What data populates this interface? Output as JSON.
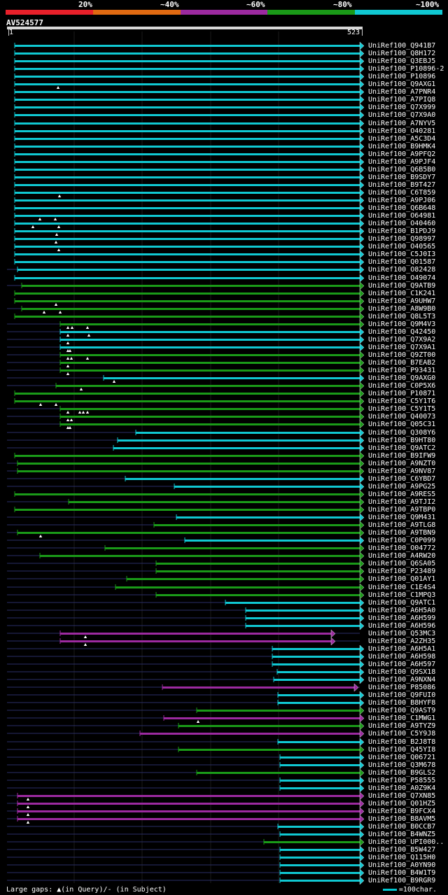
{
  "legend": {
    "labels": [
      "20%",
      "~40%",
      "~60%",
      "~80%",
      "~100%"
    ],
    "colors": [
      "#e8202a",
      "#e06a12",
      "#9c2aa0",
      "#1a9a18",
      "#10c8d2"
    ]
  },
  "query": {
    "id": "AV524577",
    "start": "1",
    "end": "523"
  },
  "hits": [
    {
      "name": "UniRef100_Q941B7",
      "x1": 21,
      "c": 4,
      "lead": 0,
      "tri": []
    },
    {
      "name": "UniRef100_Q8H172",
      "x1": 21,
      "c": 4,
      "lead": 0,
      "tri": []
    },
    {
      "name": "UniRef100_Q3EBJ5",
      "x1": 21,
      "c": 4,
      "lead": 0,
      "tri": []
    },
    {
      "name": "UniRef100_P10896-2",
      "x1": 21,
      "c": 4,
      "lead": 0,
      "tri": []
    },
    {
      "name": "UniRef100_P10896",
      "x1": 21,
      "c": 4,
      "lead": 0,
      "tri": []
    },
    {
      "name": "UniRef100_Q9AXG1",
      "x1": 21,
      "c": 4,
      "lead": 0,
      "tri": [
        83
      ]
    },
    {
      "name": "UniRef100_A7PNR4",
      "x1": 21,
      "c": 4,
      "lead": 0,
      "tri": []
    },
    {
      "name": "UniRef100_A7PIQ8",
      "x1": 21,
      "c": 4,
      "lead": 0,
      "tri": []
    },
    {
      "name": "UniRef100_Q7X999",
      "x1": 21,
      "c": 4,
      "lead": 0,
      "tri": []
    },
    {
      "name": "UniRef100_Q7X9A0",
      "x1": 21,
      "c": 4,
      "lead": 0,
      "tri": []
    },
    {
      "name": "UniRef100_A7NYV5",
      "x1": 21,
      "c": 4,
      "lead": 0,
      "tri": []
    },
    {
      "name": "UniRef100_O40281",
      "x1": 21,
      "c": 4,
      "lead": 0,
      "tri": []
    },
    {
      "name": "UniRef100_A5C3D4",
      "x1": 21,
      "c": 4,
      "lead": 0,
      "tri": []
    },
    {
      "name": "UniRef100_B9HMK4",
      "x1": 21,
      "c": 4,
      "lead": 0,
      "tri": []
    },
    {
      "name": "UniRef100_A9PFQ2",
      "x1": 21,
      "c": 4,
      "lead": 0,
      "tri": []
    },
    {
      "name": "UniRef100_A9PJF4",
      "x1": 21,
      "c": 4,
      "lead": 0,
      "tri": []
    },
    {
      "name": "UniRef100_Q6B5B0",
      "x1": 21,
      "c": 4,
      "lead": 0,
      "tri": []
    },
    {
      "name": "UniRef100_B9SDY7",
      "x1": 21,
      "c": 4,
      "lead": 0,
      "tri": []
    },
    {
      "name": "UniRef100_B9T427",
      "x1": 21,
      "c": 4,
      "lead": 0,
      "tri": []
    },
    {
      "name": "UniRef100_C6T859",
      "x1": 21,
      "c": 4,
      "lead": 0,
      "tri": [
        85
      ]
    },
    {
      "name": "UniRef100_A9PJ06",
      "x1": 21,
      "c": 4,
      "lead": 0,
      "tri": []
    },
    {
      "name": "UniRef100_Q6B648",
      "x1": 21,
      "c": 4,
      "lead": 0,
      "tri": []
    },
    {
      "name": "UniRef100_O64981",
      "x1": 21,
      "c": 4,
      "lead": 0,
      "tri": [
        57,
        79
      ]
    },
    {
      "name": "UniRef100_O40460",
      "x1": 21,
      "c": 4,
      "lead": 0,
      "tri": [
        47,
        84
      ]
    },
    {
      "name": "UniRef100_B1PDJ9",
      "x1": 21,
      "c": 4,
      "lead": 0,
      "tri": [
        81
      ]
    },
    {
      "name": "UniRef100_Q98997",
      "x1": 21,
      "c": 4,
      "lead": 0,
      "tri": [
        80
      ]
    },
    {
      "name": "UniRef100_O40565",
      "x1": 21,
      "c": 4,
      "lead": 0,
      "tri": [
        84
      ]
    },
    {
      "name": "UniRef100_C5J0I3",
      "x1": 21,
      "c": 4,
      "lead": 0,
      "tri": []
    },
    {
      "name": "UniRef100_Q01587",
      "x1": 21,
      "c": 4,
      "lead": 0,
      "tri": []
    },
    {
      "name": "UniRef100_O82428",
      "x1": 25,
      "c": 4,
      "lead": 1,
      "tri": []
    },
    {
      "name": "UniRef100_O49074",
      "x1": 21,
      "c": 4,
      "lead": 0,
      "tri": []
    },
    {
      "name": "UniRef100_Q9ATB9",
      "x1": 31,
      "c": 3,
      "lead": 1,
      "tri": []
    },
    {
      "name": "UniRef100_C1K241",
      "x1": 21,
      "c": 3,
      "lead": 0,
      "tri": []
    },
    {
      "name": "UniRef100_A9UHW7",
      "x1": 21,
      "c": 3,
      "lead": 0,
      "tri": [
        80
      ]
    },
    {
      "name": "UniRef100_A8W9B0",
      "x1": 31,
      "c": 3,
      "lead": 1,
      "tri": [
        63,
        86
      ]
    },
    {
      "name": "UniRef100_Q8L5T3",
      "x1": 21,
      "c": 3,
      "lead": 0,
      "tri": []
    },
    {
      "name": "UniRef100_Q9M4V3",
      "x1": 86,
      "c": 3,
      "lead": 1,
      "tri": [
        97,
        103,
        125
      ]
    },
    {
      "name": "UniRef100_Q42450",
      "x1": 86,
      "c": 4,
      "lead": 1,
      "tri": [
        97,
        127
      ]
    },
    {
      "name": "UniRef100_Q7X9A2",
      "x1": 86,
      "c": 4,
      "lead": 1,
      "tri": [
        97
      ]
    },
    {
      "name": "UniRef100_Q7X9A1",
      "x1": 86,
      "c": 4,
      "lead": 1,
      "tri": [
        97,
        100
      ]
    },
    {
      "name": "UniRef100_Q9ZT00",
      "x1": 86,
      "c": 3,
      "lead": 1,
      "tri": [
        97,
        102,
        125
      ]
    },
    {
      "name": "UniRef100_B7EAB2",
      "x1": 86,
      "c": 3,
      "lead": 1,
      "tri": [
        97
      ]
    },
    {
      "name": "UniRef100_P93431",
      "x1": 86,
      "c": 3,
      "lead": 1,
      "tri": [
        97
      ]
    },
    {
      "name": "UniRef100_Q9AXG0",
      "x1": 148,
      "c": 4,
      "lead": 1,
      "tri": [
        163
      ]
    },
    {
      "name": "UniRef100_C0P5X6",
      "x1": 80,
      "c": 3,
      "lead": 1,
      "tri": [
        116
      ]
    },
    {
      "name": "UniRef100_P10871",
      "x1": 21,
      "c": 3,
      "lead": 0,
      "tri": []
    },
    {
      "name": "UniRef100_C5Y1T6",
      "x1": 21,
      "c": 3,
      "lead": 0,
      "tri": [
        58,
        80
      ]
    },
    {
      "name": "UniRef100_C5Y1T5",
      "x1": 86,
      "c": 3,
      "lead": 1,
      "tri": [
        97,
        114,
        119,
        125
      ]
    },
    {
      "name": "UniRef100_Q40073",
      "x1": 86,
      "c": 3,
      "lead": 1,
      "tri": [
        97,
        102
      ]
    },
    {
      "name": "UniRef100_Q05C31",
      "x1": 86,
      "c": 3,
      "lead": 1,
      "tri": [
        97,
        100
      ]
    },
    {
      "name": "UniRef100_Q308Y6",
      "x1": 194,
      "c": 4,
      "lead": 1,
      "tri": []
    },
    {
      "name": "UniRef100_B9HT80",
      "x1": 168,
      "c": 4,
      "lead": 1,
      "tri": []
    },
    {
      "name": "UniRef100_Q9ATC2",
      "x1": 162,
      "c": 4,
      "lead": 1,
      "tri": []
    },
    {
      "name": "UniRef100_B9IFW9",
      "x1": 21,
      "c": 3,
      "lead": 0,
      "tri": []
    },
    {
      "name": "UniRef100_A9NZT0",
      "x1": 25,
      "c": 3,
      "lead": 1,
      "tri": []
    },
    {
      "name": "UniRef100_A9NV87",
      "x1": 25,
      "c": 3,
      "lead": 1,
      "tri": []
    },
    {
      "name": "UniRef100_C6YBD7",
      "x1": 179,
      "c": 4,
      "lead": 1,
      "tri": []
    },
    {
      "name": "UniRef100_A9PG25",
      "x1": 249,
      "c": 4,
      "lead": 1,
      "tri": []
    },
    {
      "name": "UniRef100_A9RES5",
      "x1": 21,
      "c": 3,
      "lead": 0,
      "tri": []
    },
    {
      "name": "UniRef100_A9TJI2",
      "x1": 98,
      "c": 3,
      "lead": 1,
      "tri": []
    },
    {
      "name": "UniRef100_A9TBP0",
      "x1": 21,
      "c": 3,
      "lead": 0,
      "tri": []
    },
    {
      "name": "UniRef100_Q9M431",
      "x1": 252,
      "c": 4,
      "lead": 1,
      "tri": []
    },
    {
      "name": "UniRef100_A9TLG8",
      "x1": 220,
      "c": 3,
      "lead": 1,
      "tri": []
    },
    {
      "name": "UniRef100_A9TBN9",
      "x1": 25,
      "c": 3,
      "lead": 1,
      "tri": [
        58
      ]
    },
    {
      "name": "UniRef100_C0P099",
      "x1": 264,
      "c": 4,
      "lead": 1,
      "tri": []
    },
    {
      "name": "UniRef100_O04772",
      "x1": 150,
      "c": 3,
      "lead": 1,
      "tri": []
    },
    {
      "name": "UniRef100_A4RW20",
      "x1": 57,
      "c": 3,
      "lead": 1,
      "tri": []
    },
    {
      "name": "UniRef100_Q6SA05",
      "x1": 223,
      "c": 3,
      "lead": 1,
      "tri": []
    },
    {
      "name": "UniRef100_P23489",
      "x1": 223,
      "c": 3,
      "lead": 1,
      "tri": []
    },
    {
      "name": "UniRef100_Q01AY1",
      "x1": 181,
      "c": 3,
      "lead": 1,
      "tri": []
    },
    {
      "name": "UniRef100_C1E4S4",
      "x1": 165,
      "c": 3,
      "lead": 1,
      "tri": []
    },
    {
      "name": "UniRef100_C1MPQ3",
      "x1": 223,
      "c": 3,
      "lead": 1,
      "tri": []
    },
    {
      "name": "UniRef100_Q9ATC1",
      "x1": 322,
      "c": 4,
      "lead": 1,
      "tri": []
    },
    {
      "name": "UniRef100_A6H5A0",
      "x1": 351,
      "c": 4,
      "lead": 1,
      "tri": []
    },
    {
      "name": "UniRef100_A6H599",
      "x1": 351,
      "c": 4,
      "lead": 1,
      "tri": []
    },
    {
      "name": "UniRef100_A6H596",
      "x1": 351,
      "c": 4,
      "lead": 1,
      "tri": []
    },
    {
      "name": "UniRef100_Q53MC3",
      "x1": 86,
      "c": 2,
      "lead": 1,
      "tri": [
        122
      ],
      "x2": 473
    },
    {
      "name": "UniRef100_A2ZH35",
      "x1": 86,
      "c": 2,
      "lead": 1,
      "tri": [
        122
      ],
      "x2": 473
    },
    {
      "name": "UniRef100_A6H5A1",
      "x1": 389,
      "c": 4,
      "lead": 1,
      "tri": []
    },
    {
      "name": "UniRef100_A6H598",
      "x1": 389,
      "c": 4,
      "lead": 1,
      "tri": []
    },
    {
      "name": "UniRef100_A6H597",
      "x1": 389,
      "c": 4,
      "lead": 1,
      "tri": []
    },
    {
      "name": "UniRef100_Q9SX18",
      "x1": 396,
      "c": 4,
      "lead": 1,
      "tri": []
    },
    {
      "name": "UniRef100_A9NXN4",
      "x1": 391,
      "c": 4,
      "lead": 1,
      "tri": []
    },
    {
      "name": "UniRef100_P85086",
      "x1": 232,
      "c": 2,
      "lead": 1,
      "tri": [],
      "x2": 506
    },
    {
      "name": "UniRef100_Q9FUI0",
      "x1": 397,
      "c": 4,
      "lead": 1,
      "tri": []
    },
    {
      "name": "UniRef100_B8HYF8",
      "x1": 397,
      "c": 4,
      "lead": 1,
      "tri": []
    },
    {
      "name": "UniRef100_Q9AST9",
      "x1": 281,
      "c": 3,
      "lead": 1,
      "tri": []
    },
    {
      "name": "UniRef100_C1MWG1",
      "x1": 234,
      "c": 2,
      "lead": 1,
      "tri": [
        283
      ]
    },
    {
      "name": "UniRef100_A9TYZ9",
      "x1": 255,
      "c": 3,
      "lead": 1,
      "tri": []
    },
    {
      "name": "UniRef100_C5Y9J8",
      "x1": 200,
      "c": 2,
      "lead": 1,
      "tri": []
    },
    {
      "name": "UniRef100_B2J8T8",
      "x1": 397,
      "c": 4,
      "lead": 1,
      "tri": []
    },
    {
      "name": "UniRef100_Q45YI8",
      "x1": 255,
      "c": 3,
      "lead": 1,
      "tri": []
    },
    {
      "name": "UniRef100_Q06721",
      "x1": 400,
      "c": 4,
      "lead": 1,
      "tri": []
    },
    {
      "name": "UniRef100_Q3M678",
      "x1": 400,
      "c": 4,
      "lead": 1,
      "tri": []
    },
    {
      "name": "UniRef100_B9GLS2",
      "x1": 281,
      "c": 3,
      "lead": 1,
      "tri": []
    },
    {
      "name": "UniRef100_P58555",
      "x1": 400,
      "c": 4,
      "lead": 1,
      "tri": []
    },
    {
      "name": "UniRef100_A0Z9K4",
      "x1": 400,
      "c": 4,
      "lead": 1,
      "tri": []
    },
    {
      "name": "UniRef100_Q7XN85",
      "x1": 25,
      "c": 2,
      "lead": 1,
      "tri": [
        40
      ]
    },
    {
      "name": "UniRef100_Q01HZ5",
      "x1": 25,
      "c": 2,
      "lead": 1,
      "tri": [
        40
      ]
    },
    {
      "name": "UniRef100_B9FCX4",
      "x1": 25,
      "c": 2,
      "lead": 1,
      "tri": [
        40
      ]
    },
    {
      "name": "UniRef100_B8AVM5",
      "x1": 25,
      "c": 2,
      "lead": 1,
      "tri": [
        40
      ]
    },
    {
      "name": "UniRef100_B0CCB7",
      "x1": 397,
      "c": 4,
      "lead": 1,
      "tri": []
    },
    {
      "name": "UniRef100_B4WNZ5",
      "x1": 400,
      "c": 4,
      "lead": 1,
      "tri": []
    },
    {
      "name": "UniRef100_UPI000..",
      "x1": 377,
      "c": 3,
      "lead": 1,
      "tri": []
    },
    {
      "name": "UniRef100_B5W427",
      "x1": 400,
      "c": 4,
      "lead": 1,
      "tri": []
    },
    {
      "name": "UniRef100_Q115H0",
      "x1": 400,
      "c": 4,
      "lead": 1,
      "tri": []
    },
    {
      "name": "UniRef100_A0YN90",
      "x1": 400,
      "c": 4,
      "lead": 1,
      "tri": []
    },
    {
      "name": "UniRef100_B4W1T9",
      "x1": 400,
      "c": 4,
      "lead": 1,
      "tri": []
    },
    {
      "name": "UniRef100_B9RGR9",
      "x1": 400,
      "c": 4,
      "lead": 1,
      "tri": []
    }
  ],
  "footer": {
    "large_gaps": "Large gaps: ▲(in Query)/- (in Subject)",
    "scale": "=100char."
  }
}
